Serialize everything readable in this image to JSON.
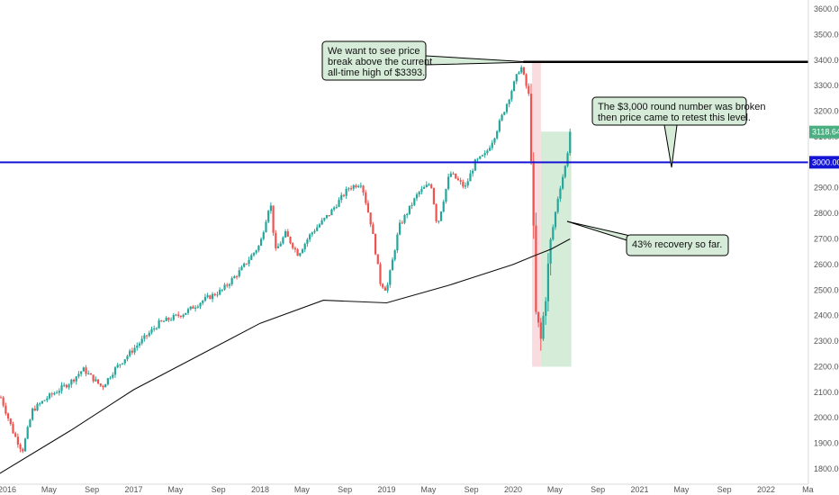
{
  "chart_data": {
    "type": "candlestick",
    "title": "",
    "xlabel": "",
    "ylabel": "",
    "y_range": [
      1750,
      3650
    ],
    "y_ticks": [
      "1800.00",
      "1900.00",
      "2000.00",
      "2100.00",
      "2200.00",
      "2300.00",
      "2400.00",
      "2500.00",
      "2600.00",
      "2700.00",
      "2800.00",
      "2900.00",
      "3000.00",
      "3100.00",
      "3200.00",
      "3300.00",
      "3400.00",
      "3500.00",
      "3600.00"
    ],
    "x_ticks": [
      "2016",
      "May",
      "Sep",
      "2017",
      "May",
      "Sep",
      "2018",
      "May",
      "Sep",
      "2019",
      "May",
      "Sep",
      "2020",
      "May",
      "Sep",
      "2021",
      "May",
      "Sep",
      "2022",
      "Ma"
    ],
    "x_tick_values": [
      2016.0,
      2016.33,
      2016.67,
      2017.0,
      2017.33,
      2017.67,
      2018.0,
      2018.33,
      2018.67,
      2019.0,
      2019.33,
      2019.67,
      2020.0,
      2020.33,
      2020.67,
      2021.0,
      2021.33,
      2021.67,
      2022.0,
      2022.33
    ],
    "price_anchors": {
      "t": [
        2015.95,
        2016.05,
        2016.12,
        2016.2,
        2016.32,
        2016.5,
        2016.6,
        2016.75,
        2016.85,
        2017.0,
        2017.2,
        2017.4,
        2017.55,
        2017.7,
        2017.85,
        2018.0,
        2018.08,
        2018.12,
        2018.2,
        2018.3,
        2018.4,
        2018.55,
        2018.7,
        2018.8,
        2018.88,
        2018.95,
        2019.0,
        2019.1,
        2019.25,
        2019.35,
        2019.4,
        2019.5,
        2019.62,
        2019.7,
        2019.78,
        2019.85,
        2019.95,
        2020.06,
        2020.13,
        2020.18,
        2020.22,
        2020.3,
        2020.36,
        2020.42,
        2020.45
      ],
      "close": [
        2080,
        1940,
        1870,
        2030,
        2080,
        2140,
        2190,
        2120,
        2190,
        2270,
        2370,
        2410,
        2460,
        2500,
        2580,
        2680,
        2850,
        2650,
        2720,
        2640,
        2720,
        2800,
        2900,
        2920,
        2750,
        2530,
        2500,
        2750,
        2880,
        2920,
        2750,
        2960,
        2900,
        3000,
        3030,
        3100,
        3230,
        3380,
        3250,
        2400,
        2300,
        2700,
        2880,
        3000,
        3120
      ]
    },
    "annotations": [
      {
        "text": [
          "We want to see price",
          "break above the current",
          "all-time high of $3393."
        ]
      },
      {
        "text": [
          "The $3,000 round number was broken",
          "then price came to retest this level."
        ]
      },
      {
        "text": [
          "43% recovery so far."
        ]
      }
    ],
    "horizontal_levels": [
      {
        "label": "3000.00",
        "value": 3000,
        "color": "#1515d6"
      },
      {
        "value": 3393,
        "color": "#000000"
      }
    ],
    "current_price": {
      "label": "3118.64",
      "value": 3118.64,
      "color": "#4caf82"
    },
    "moving_average": {
      "t": [
        2015.9,
        2016.5,
        2017.0,
        2017.5,
        2018.0,
        2018.5,
        2019.0,
        2019.5,
        2020.0,
        2020.17,
        2020.3,
        2020.45
      ],
      "value": [
        1770,
        1950,
        2110,
        2240,
        2370,
        2460,
        2450,
        2520,
        2600,
        2635,
        2660,
        2700
      ]
    },
    "zones": [
      {
        "t0": 2020.15,
        "t1": 2020.22,
        "y0": 2200,
        "y1": 3393,
        "color": "#f8d6d9"
      },
      {
        "t0": 2020.22,
        "t1": 2020.46,
        "y0": 2200,
        "y1": 3120,
        "color": "#cde9d1"
      }
    ],
    "grid": false,
    "colors": {
      "up": "#26a69a",
      "down": "#ef5350"
    }
  }
}
